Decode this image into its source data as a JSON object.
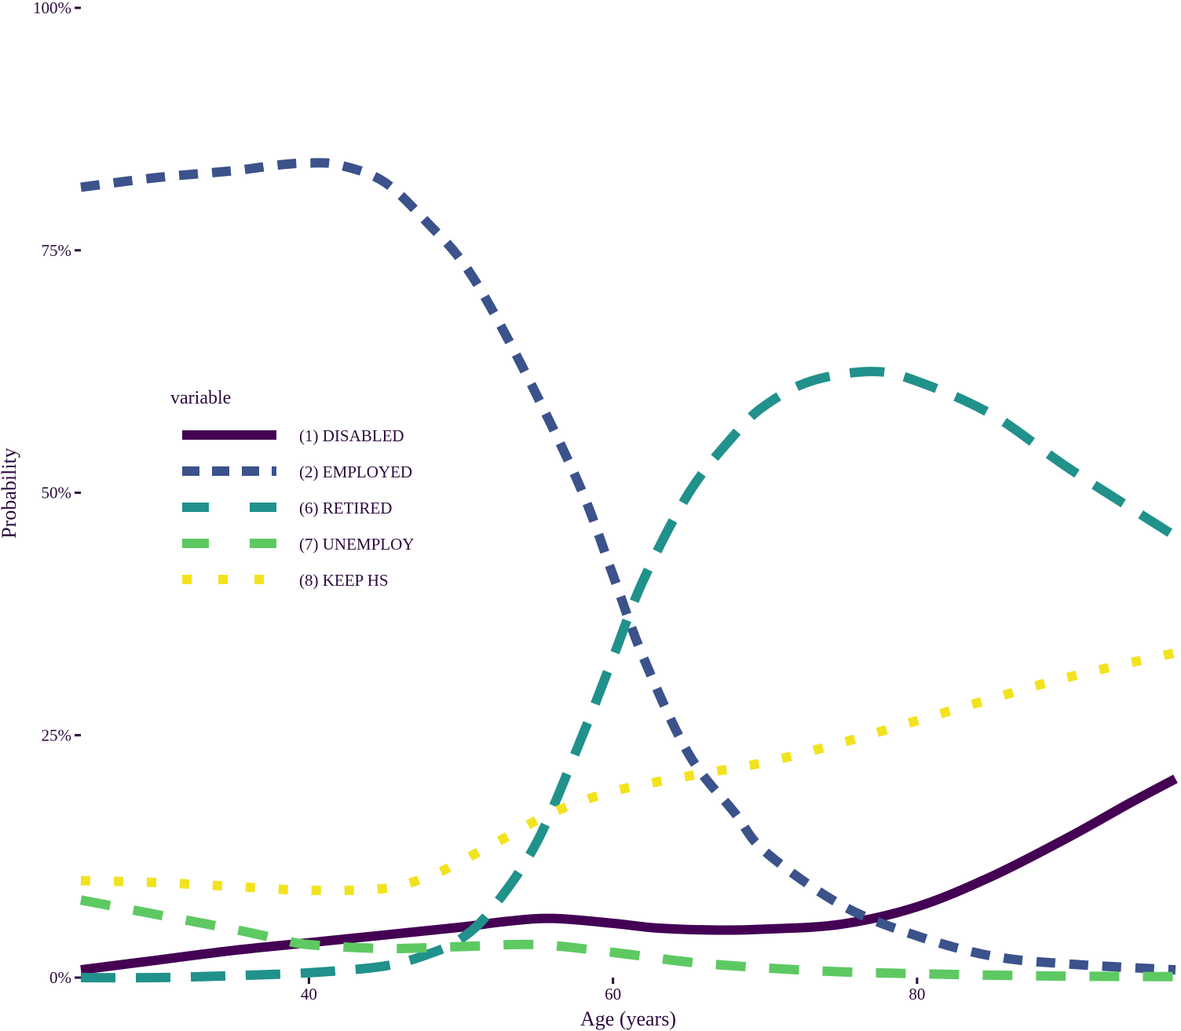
{
  "chart_data": {
    "type": "line",
    "xlabel": "Age (years)",
    "ylabel": "Probability",
    "xlim": [
      25,
      97
    ],
    "ylim": [
      0,
      100
    ],
    "xticks": [
      40,
      60,
      80
    ],
    "xtick_labels": [
      "40",
      "60",
      "80"
    ],
    "yticks": [
      0,
      25,
      50,
      75,
      100
    ],
    "ytick_labels": [
      "0%",
      "25%",
      "50%",
      "75%",
      "100%"
    ],
    "grid": false,
    "legend": {
      "title": "variable",
      "position": "left-center"
    },
    "series": [
      {
        "name": "(1) DISABLED",
        "color": "#440154",
        "dash": "solid",
        "x": [
          25,
          30,
          35,
          40,
          45,
          50,
          53,
          56,
          60,
          63,
          67,
          70,
          75,
          80,
          85,
          90,
          94,
          97
        ],
        "y": [
          0.8,
          1.8,
          2.8,
          3.6,
          4.4,
          5.2,
          5.8,
          6.1,
          5.6,
          5.1,
          4.9,
          5.0,
          5.5,
          7.3,
          10.5,
          14.5,
          18.0,
          20.5
        ]
      },
      {
        "name": "(2) EMPLOYED",
        "color": "#3b528b",
        "dash": "short-dash",
        "x": [
          25,
          30,
          35,
          38,
          40,
          42,
          45,
          48,
          50,
          52,
          55,
          58,
          60,
          62,
          65,
          68,
          70,
          75,
          80,
          85,
          90,
          97
        ],
        "y": [
          81.5,
          82.5,
          83.2,
          83.8,
          84.0,
          83.8,
          82.0,
          77.5,
          74.0,
          69.0,
          60.0,
          50.0,
          41.5,
          33.0,
          23.0,
          17.0,
          13.0,
          7.5,
          4.3,
          2.2,
          1.4,
          0.8
        ]
      },
      {
        "name": "(6) RETIRED",
        "color": "#21918c",
        "dash": "long-dash",
        "x": [
          25,
          30,
          35,
          40,
          45,
          48,
          50,
          52,
          55,
          58,
          60,
          62,
          65,
          68,
          70,
          73,
          77,
          80,
          85,
          90,
          97
        ],
        "y": [
          0,
          0,
          0.2,
          0.5,
          1.2,
          2.5,
          4.0,
          7.0,
          14.0,
          25.0,
          33.0,
          41.0,
          50.0,
          56.0,
          59.0,
          61.5,
          62.5,
          61.5,
          58.0,
          52.5,
          45.5
        ]
      },
      {
        "name": "(7) UNEMPLOY",
        "color": "#5ec962",
        "dash": "medium-dash",
        "x": [
          25,
          30,
          35,
          38,
          40,
          45,
          50,
          55,
          60,
          65,
          70,
          75,
          80,
          85,
          90,
          97
        ],
        "y": [
          8.0,
          6.5,
          5.0,
          4.0,
          3.4,
          3.0,
          3.2,
          3.4,
          2.6,
          1.6,
          1.0,
          0.6,
          0.4,
          0.25,
          0.15,
          0.1
        ]
      },
      {
        "name": "(8) KEEP HS",
        "color": "#f2e31e",
        "dash": "dotted",
        "x": [
          25,
          30,
          35,
          40,
          45,
          48,
          50,
          53,
          56,
          60,
          65,
          70,
          75,
          80,
          85,
          90,
          97
        ],
        "y": [
          10.0,
          9.8,
          9.4,
          9.0,
          9.2,
          10.5,
          12.0,
          14.5,
          17.0,
          19.2,
          20.8,
          22.2,
          24.2,
          26.5,
          28.8,
          31.0,
          33.5
        ]
      }
    ]
  }
}
